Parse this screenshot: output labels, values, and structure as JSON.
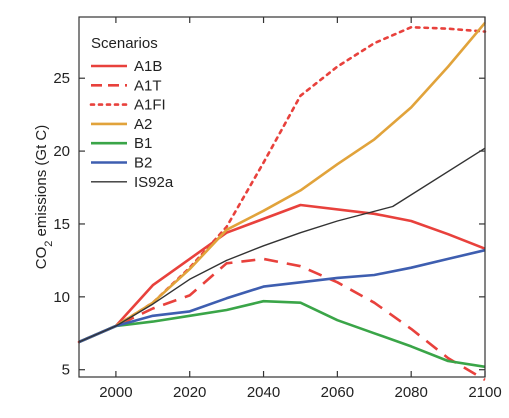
{
  "chart_data": {
    "type": "line",
    "ylabel_main": "CO",
    "ylabel_sub": "2",
    "ylabel_rest": " emissions (Gt C)",
    "xlim": [
      1990,
      2100
    ],
    "ylim": [
      4.5,
      29.2
    ],
    "xticks": [
      2000,
      2020,
      2040,
      2060,
      2080,
      2100
    ],
    "yticks": [
      5,
      10,
      15,
      20,
      25
    ],
    "grid": false,
    "legend": {
      "title": "Scenarios",
      "placement": "top-left"
    },
    "series": [
      {
        "name": "A1B",
        "color": "#e8413c",
        "dash": "solid",
        "x": [
          1990,
          2000,
          2010,
          2020,
          2030,
          2050,
          2070,
          2080,
          2090,
          2100
        ],
        "y": [
          6.9,
          8.0,
          10.8,
          12.6,
          14.4,
          16.3,
          15.7,
          15.2,
          14.3,
          13.3
        ]
      },
      {
        "name": "A1T",
        "color": "#e8413c",
        "dash": "dashed",
        "x": [
          1990,
          2000,
          2010,
          2020,
          2030,
          2040,
          2050,
          2060,
          2070,
          2080,
          2090,
          2100
        ],
        "y": [
          6.9,
          8.0,
          9.2,
          10.1,
          12.3,
          12.6,
          12.1,
          11.0,
          9.6,
          7.8,
          5.8,
          4.3
        ]
      },
      {
        "name": "A1FI",
        "color": "#e8413c",
        "dash": "dotted",
        "x": [
          1990,
          2000,
          2010,
          2020,
          2030,
          2040,
          2050,
          2060,
          2070,
          2080,
          2090,
          2100
        ],
        "y": [
          6.9,
          8.0,
          9.6,
          12.0,
          14.8,
          19.2,
          23.8,
          25.8,
          27.4,
          28.5,
          28.4,
          28.2
        ]
      },
      {
        "name": "A2",
        "color": "#e1a33b",
        "dash": "solid",
        "x": [
          1990,
          2000,
          2010,
          2020,
          2030,
          2040,
          2050,
          2060,
          2070,
          2080,
          2090,
          2100
        ],
        "y": [
          6.9,
          8.0,
          9.6,
          11.9,
          14.6,
          15.9,
          17.3,
          19.1,
          20.8,
          23.0,
          25.8,
          28.8
        ]
      },
      {
        "name": "B1",
        "color": "#3aa548",
        "dash": "solid",
        "x": [
          1990,
          2000,
          2010,
          2020,
          2030,
          2040,
          2050,
          2060,
          2070,
          2080,
          2090,
          2100
        ],
        "y": [
          6.9,
          8.0,
          8.3,
          8.7,
          9.1,
          9.7,
          9.6,
          8.4,
          7.5,
          6.6,
          5.6,
          5.2
        ]
      },
      {
        "name": "B2",
        "color": "#3e5eb0",
        "dash": "solid",
        "x": [
          1990,
          2000,
          2010,
          2020,
          2030,
          2040,
          2050,
          2060,
          2070,
          2080,
          2090,
          2100
        ],
        "y": [
          6.9,
          8.0,
          8.7,
          9.0,
          9.9,
          10.7,
          11.0,
          11.3,
          11.5,
          12.0,
          12.6,
          13.2
        ]
      },
      {
        "name": "IS92a",
        "color": "#333333",
        "dash": "solid",
        "x": [
          1990,
          2000,
          2010,
          2020,
          2030,
          2040,
          2050,
          2060,
          2075,
          2100
        ],
        "y": [
          6.9,
          8.0,
          9.5,
          11.2,
          12.5,
          13.5,
          14.4,
          15.2,
          16.2,
          20.2
        ]
      }
    ]
  }
}
